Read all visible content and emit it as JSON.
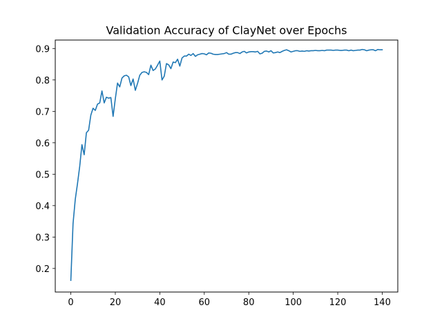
{
  "chart_data": {
    "type": "line",
    "title": "Validation Accuracy of ClayNet over Epochs",
    "xlabel": "",
    "ylabel": "",
    "xlim": [
      -7,
      147
    ],
    "ylim": [
      0.125,
      0.927
    ],
    "xticks": [
      0,
      20,
      40,
      60,
      80,
      100,
      120,
      140
    ],
    "yticks": [
      0.2,
      0.3,
      0.4,
      0.5,
      0.6,
      0.7,
      0.8,
      0.9
    ],
    "grid": false,
    "legend": "none",
    "color": "#1f77b4",
    "series": [
      {
        "x": [
          0,
          1,
          2,
          3,
          4,
          5,
          6,
          7,
          8,
          9,
          10,
          11,
          12,
          13,
          14,
          15,
          16,
          17,
          18,
          19,
          20,
          21,
          22,
          23,
          24,
          25,
          26,
          27,
          28,
          29,
          30,
          31,
          32,
          33,
          34,
          35,
          36,
          37,
          38,
          39,
          40,
          41,
          42,
          43,
          44,
          45,
          46,
          47,
          48,
          49,
          50,
          51,
          52,
          53,
          54,
          55,
          56,
          57,
          58,
          59,
          60,
          61,
          62,
          63,
          64,
          65,
          66,
          67,
          68,
          69,
          70,
          71,
          72,
          73,
          74,
          75,
          76,
          77,
          78,
          79,
          80,
          81,
          82,
          83,
          84,
          85,
          86,
          87,
          88,
          89,
          90,
          91,
          92,
          93,
          94,
          95,
          96,
          97,
          98,
          99,
          100,
          101,
          102,
          103,
          104,
          105,
          106,
          107,
          108,
          109,
          110,
          111,
          112,
          113,
          114,
          115,
          116,
          117,
          118,
          119,
          120,
          121,
          122,
          123,
          124,
          125,
          126,
          127,
          128,
          129,
          130,
          131,
          132,
          133,
          134,
          135,
          136,
          137,
          138,
          139,
          140
        ],
        "values": [
          0.162,
          0.343,
          0.42,
          0.47,
          0.525,
          0.594,
          0.562,
          0.632,
          0.64,
          0.688,
          0.71,
          0.703,
          0.723,
          0.727,
          0.765,
          0.727,
          0.745,
          0.742,
          0.744,
          0.684,
          0.74,
          0.79,
          0.778,
          0.806,
          0.813,
          0.815,
          0.81,
          0.782,
          0.803,
          0.767,
          0.789,
          0.815,
          0.824,
          0.826,
          0.824,
          0.817,
          0.847,
          0.83,
          0.835,
          0.847,
          0.86,
          0.8,
          0.812,
          0.852,
          0.848,
          0.836,
          0.857,
          0.855,
          0.866,
          0.844,
          0.87,
          0.876,
          0.876,
          0.882,
          0.878,
          0.884,
          0.875,
          0.88,
          0.882,
          0.884,
          0.883,
          0.88,
          0.886,
          0.885,
          0.882,
          0.881,
          0.881,
          0.882,
          0.883,
          0.884,
          0.887,
          0.882,
          0.882,
          0.885,
          0.887,
          0.887,
          0.884,
          0.889,
          0.891,
          0.886,
          0.889,
          0.89,
          0.89,
          0.889,
          0.891,
          0.883,
          0.885,
          0.891,
          0.892,
          0.889,
          0.893,
          0.886,
          0.887,
          0.889,
          0.887,
          0.891,
          0.894,
          0.896,
          0.893,
          0.889,
          0.891,
          0.893,
          0.893,
          0.891,
          0.892,
          0.891,
          0.893,
          0.892,
          0.893,
          0.893,
          0.894,
          0.893,
          0.893,
          0.894,
          0.893,
          0.895,
          0.895,
          0.895,
          0.894,
          0.895,
          0.895,
          0.894,
          0.894,
          0.895,
          0.895,
          0.893,
          0.895,
          0.893,
          0.894,
          0.895,
          0.895,
          0.897,
          0.896,
          0.893,
          0.895,
          0.896,
          0.896,
          0.893,
          0.897,
          0.896,
          0.896
        ]
      }
    ]
  }
}
